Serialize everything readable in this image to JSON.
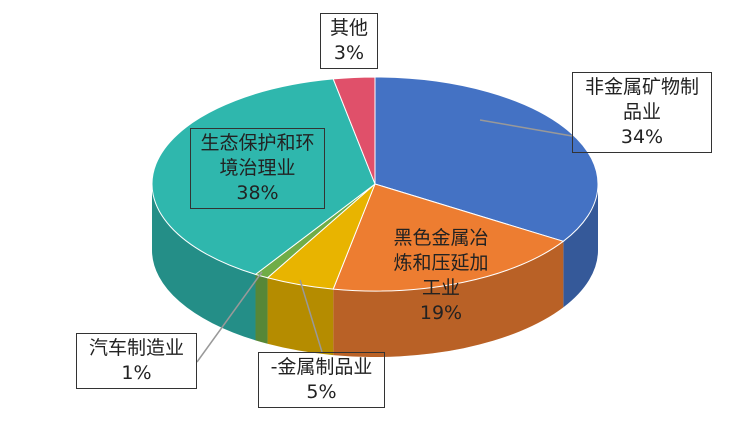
{
  "chart_data": {
    "type": "pie3d",
    "categories": [
      "非金属矿物制品业",
      "黑色金属冶炼和压延加工业",
      "-金属制品业",
      "汽车制造业",
      "生态保护和环境治理业",
      "其他"
    ],
    "values": [
      34,
      19,
      5,
      1,
      38,
      3
    ],
    "value_labels": [
      "34%",
      "19%",
      "5%",
      "1%",
      "38%",
      "3%"
    ],
    "colors": [
      "#4472c4",
      "#ed7d31",
      "#e8b400",
      "#70ad47",
      "#2fb7ad",
      "#e0506a"
    ]
  }
}
